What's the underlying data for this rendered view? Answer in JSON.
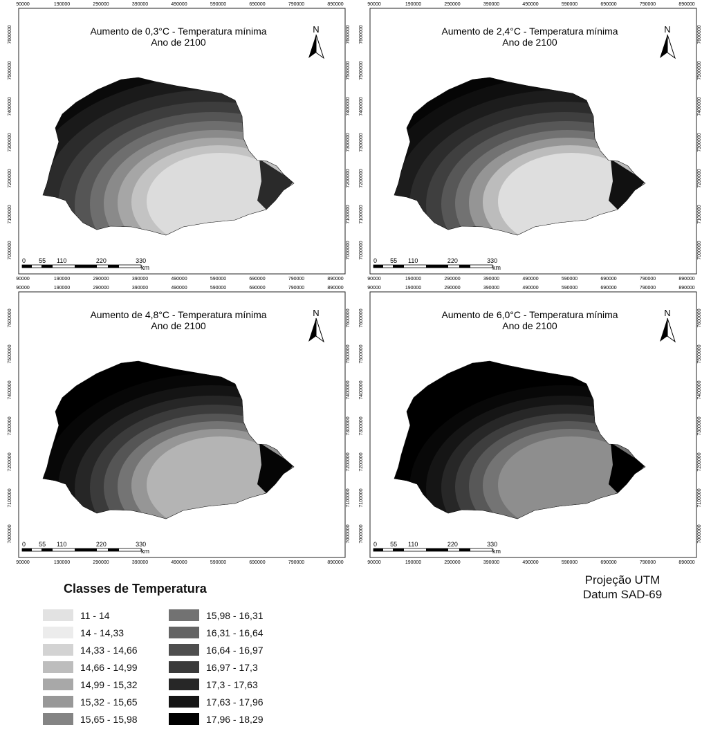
{
  "panels": [
    {
      "title_line1": "Aumento de 0,3°C - Temperatura mínima",
      "title_line2": "Ano de 2100",
      "north": "N",
      "scale_labels": [
        "0",
        "55",
        "110",
        "220",
        "330"
      ],
      "scale_unit": "km",
      "x_ticks": [
        "90000",
        "190000",
        "290000",
        "390000",
        "490000",
        "590000",
        "690000",
        "790000",
        "890000"
      ],
      "y_ticks": [
        "7600000",
        "7500000",
        "7400000",
        "7300000",
        "7200000",
        "7100000",
        "7000000"
      ],
      "zones": [
        "#0a0a0a",
        "#1a1a1a",
        "#2b2b2b",
        "#3d3d3d",
        "#555555",
        "#6e6e6e",
        "#8a8a8a",
        "#a6a6a6",
        "#c3c3c3",
        "#dcdcdc"
      ],
      "east_color": "#2a2a2a"
    },
    {
      "title_line1": "Aumento de 2,4°C - Temperatura mínima",
      "title_line2": "Ano de 2100",
      "north": "N",
      "scale_labels": [
        "0",
        "55",
        "110",
        "220",
        "330"
      ],
      "scale_unit": "km",
      "x_ticks": [
        "90000",
        "190000",
        "290000",
        "390000",
        "490000",
        "590000",
        "690000",
        "790000",
        "890000"
      ],
      "y_ticks": [
        "7600000",
        "7500000",
        "7400000",
        "7300000",
        "7200000",
        "7100000",
        "7000000"
      ],
      "zones": [
        "#050505",
        "#0f0f0f",
        "#1c1c1c",
        "#2c2c2c",
        "#3f3f3f",
        "#575757",
        "#727272",
        "#959595",
        "#bcbcbc",
        "#dedede"
      ],
      "east_color": "#111111"
    },
    {
      "title_line1": "Aumento de 4,8°C - Temperatura mínima",
      "title_line2": "Ano de 2100",
      "north": "N",
      "scale_labels": [
        "0",
        "55",
        "110",
        "220",
        "330"
      ],
      "scale_unit": "km",
      "x_ticks": [
        "90000",
        "190000",
        "290000",
        "390000",
        "490000",
        "590000",
        "690000",
        "790000",
        "890000"
      ],
      "y_ticks": [
        "7600000",
        "7500000",
        "7400000",
        "7300000",
        "7200000",
        "7100000",
        "7000000"
      ],
      "zones": [
        "#000000",
        "#000000",
        "#070707",
        "#141414",
        "#262626",
        "#3b3b3b",
        "#555555",
        "#747474",
        "#969696",
        "#b4b4b4"
      ],
      "east_color": "#050505"
    },
    {
      "title_line1": "Aumento de 6,0°C - Temperatura mínima",
      "title_line2": "Ano de 2100",
      "north": "N",
      "scale_labels": [
        "0",
        "55",
        "110",
        "220",
        "330"
      ],
      "scale_unit": "km",
      "x_ticks": [
        "90000",
        "190000",
        "290000",
        "390000",
        "490000",
        "590000",
        "690000",
        "790000",
        "890000"
      ],
      "y_ticks": [
        "7600000",
        "7500000",
        "7400000",
        "7300000",
        "7200000",
        "7100000",
        "7000000"
      ],
      "zones": [
        "#000000",
        "#000000",
        "#000000",
        "#080808",
        "#151515",
        "#272727",
        "#3e3e3e",
        "#585858",
        "#747474",
        "#8e8e8e"
      ],
      "east_color": "#000000"
    }
  ],
  "legend": {
    "title": "Classes de Temperatura",
    "items": [
      {
        "label": "11 - 14",
        "color": "#e2e2e2"
      },
      {
        "label": "14 - 14,33",
        "color": "#ececec"
      },
      {
        "label": "14,33 - 14,66",
        "color": "#d3d3d3"
      },
      {
        "label": "14,66 - 14,99",
        "color": "#bdbdbd"
      },
      {
        "label": "14,99 - 15,32",
        "color": "#a8a8a8"
      },
      {
        "label": "15,32 - 15,65",
        "color": "#989898"
      },
      {
        "label": "15,65 - 15,98",
        "color": "#848484"
      },
      {
        "label": "15,98 - 16,31",
        "color": "#727272"
      },
      {
        "label": "16,31 - 16,64",
        "color": "#646464"
      },
      {
        "label": "16,64 - 16,97",
        "color": "#4e4e4e"
      },
      {
        "label": "16,97 - 17,3",
        "color": "#3a3a3a"
      },
      {
        "label": "17,3 - 17,63",
        "color": "#272727"
      },
      {
        "label": "17,63 - 17,96",
        "color": "#141414"
      },
      {
        "label": "17,96 - 18,29",
        "color": "#000000"
      }
    ]
  },
  "projection": {
    "line1": "Projeção UTM",
    "line2": "Datum SAD-69"
  }
}
